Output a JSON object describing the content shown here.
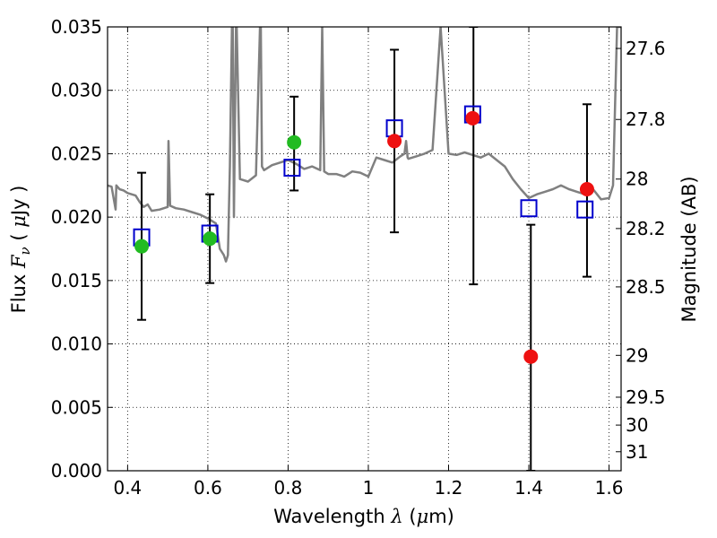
{
  "chart_data": {
    "type": "scatter",
    "xlabel_text": "Wavelength",
    "xlabel_symbol": "λ",
    "xlabel_unit_open": " (",
    "xlabel_unit_mu": "μ",
    "xlabel_unit_rest": "m)",
    "ylabel_text": "Flux",
    "ylabel_symbol": "F",
    "ylabel_subscript": "ν",
    "ylabel_unit_open": " ( ",
    "ylabel_unit_mu": "μ",
    "ylabel_unit_rest": "Jy )",
    "y2label": "Magnitude (AB)",
    "xlim": [
      0.35,
      1.63
    ],
    "ylim": [
      0.0,
      0.035
    ],
    "grid": true,
    "x_ticks": [
      0.4,
      0.6,
      0.8,
      1.0,
      1.2,
      1.4,
      1.6
    ],
    "x_tick_labels": [
      "0.4",
      "0.6",
      "0.8",
      "1",
      "1.2",
      "1.4",
      "1.6"
    ],
    "y_ticks": [
      0.0,
      0.005,
      0.01,
      0.015,
      0.02,
      0.025,
      0.03,
      0.035
    ],
    "y_tick_labels": [
      "0.000",
      "0.005",
      "0.010",
      "0.015",
      "0.020",
      "0.025",
      "0.030",
      "0.035"
    ],
    "right_ticks": [
      {
        "mag_label": "27.6",
        "flux": 0.0333
      },
      {
        "mag_label": "27.8",
        "flux": 0.0277
      },
      {
        "mag_label": "28",
        "flux": 0.023
      },
      {
        "mag_label": "28.2",
        "flux": 0.0191
      },
      {
        "mag_label": "28.5",
        "flux": 0.0145
      },
      {
        "mag_label": "29",
        "flux": 0.0091
      },
      {
        "mag_label": "29.5",
        "flux": 0.0058
      },
      {
        "mag_label": "30",
        "flux": 0.0036
      },
      {
        "mag_label": "31",
        "flux": 0.0015
      }
    ],
    "model_spectrum": {
      "color": "#808080",
      "x": [
        0.35,
        0.36,
        0.37,
        0.372,
        0.38,
        0.39,
        0.4,
        0.41,
        0.42,
        0.43,
        0.44,
        0.45,
        0.46,
        0.48,
        0.5,
        0.502,
        0.506,
        0.52,
        0.54,
        0.56,
        0.58,
        0.6,
        0.62,
        0.63,
        0.64,
        0.645,
        0.65,
        0.655,
        0.66,
        0.662,
        0.665,
        0.67,
        0.672,
        0.68,
        0.7,
        0.72,
        0.73,
        0.732,
        0.735,
        0.74,
        0.76,
        0.78,
        0.8,
        0.82,
        0.84,
        0.86,
        0.88,
        0.885,
        0.89,
        0.9,
        0.92,
        0.94,
        0.96,
        0.98,
        1.0,
        1.02,
        1.04,
        1.06,
        1.08,
        1.09,
        1.094,
        1.098,
        1.1,
        1.12,
        1.14,
        1.16,
        1.18,
        1.2,
        1.22,
        1.24,
        1.26,
        1.28,
        1.3,
        1.32,
        1.34,
        1.36,
        1.38,
        1.4,
        1.42,
        1.44,
        1.46,
        1.48,
        1.5,
        1.52,
        1.54,
        1.56,
        1.58,
        1.6,
        1.61,
        1.62,
        1.63
      ],
      "y": [
        0.0225,
        0.0224,
        0.0206,
        0.0225,
        0.0222,
        0.0221,
        0.0219,
        0.0218,
        0.0217,
        0.0212,
        0.0208,
        0.021,
        0.0205,
        0.0206,
        0.0208,
        0.026,
        0.0209,
        0.0207,
        0.0206,
        0.0204,
        0.0202,
        0.0199,
        0.0195,
        0.0175,
        0.017,
        0.0165,
        0.017,
        0.024,
        0.035,
        0.035,
        0.02,
        0.035,
        0.035,
        0.023,
        0.0228,
        0.0233,
        0.035,
        0.035,
        0.024,
        0.0237,
        0.0241,
        0.0243,
        0.0245,
        0.0242,
        0.0238,
        0.024,
        0.0237,
        0.035,
        0.0236,
        0.0234,
        0.0234,
        0.0232,
        0.0236,
        0.0235,
        0.0232,
        0.0247,
        0.0245,
        0.0243,
        0.0248,
        0.025,
        0.026,
        0.0247,
        0.0246,
        0.0248,
        0.025,
        0.0253,
        0.035,
        0.025,
        0.0249,
        0.0251,
        0.0249,
        0.0247,
        0.025,
        0.0245,
        0.024,
        0.023,
        0.0222,
        0.0215,
        0.0218,
        0.022,
        0.0222,
        0.0225,
        0.0222,
        0.022,
        0.0218,
        0.0222,
        0.0214,
        0.0215,
        0.0225,
        0.035,
        0.035
      ]
    },
    "series": [
      {
        "marker": "square",
        "color": "#0000cc",
        "x": [
          0.435,
          0.605,
          0.81,
          1.065,
          1.26,
          1.4,
          1.54
        ],
        "y": [
          0.0184,
          0.0187,
          0.0239,
          0.027,
          0.0281,
          0.0207,
          0.0206
        ]
      },
      {
        "marker": "circle",
        "color": "#22bb22",
        "x": [
          0.435,
          0.605,
          0.815
        ],
        "y": [
          0.0177,
          0.0183,
          0.0259
        ]
      },
      {
        "marker": "circle",
        "color": "#ee1111",
        "x": [
          1.065,
          1.26,
          1.405,
          1.545
        ],
        "y": [
          0.026,
          0.0278,
          0.009,
          0.0222
        ]
      }
    ],
    "error_bars": {
      "color": "#000000",
      "x": [
        0.435,
        0.605,
        0.815,
        1.065,
        1.262,
        1.405,
        1.545
      ],
      "y_low": [
        0.0119,
        0.0148,
        0.0221,
        0.0188,
        0.0147,
        0.0,
        0.0153
      ],
      "y_high": [
        0.0235,
        0.0218,
        0.0295,
        0.0332,
        0.035,
        0.0194,
        0.0289
      ]
    }
  }
}
